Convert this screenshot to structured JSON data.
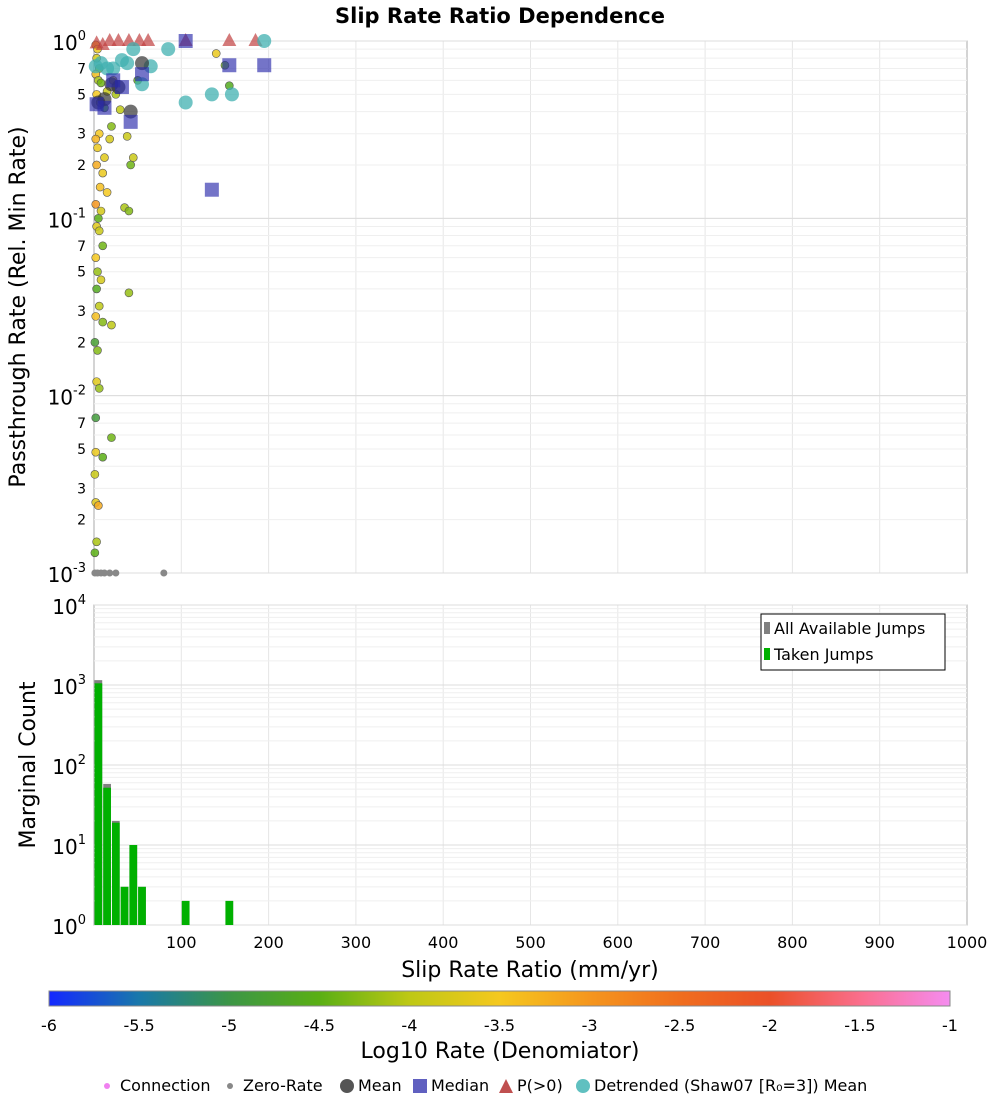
{
  "chart_data": [
    {
      "type": "scatter",
      "title": "Slip Rate Ratio Dependence",
      "xlabel": "Slip Rate Ratio (mm/yr)",
      "ylabel": "Passthrough Rate (Rel. Min Rate)",
      "xlim": [
        0,
        1000
      ],
      "ylim": [
        0.001,
        1
      ],
      "yscale": "log",
      "ytick_labels": [
        "10^-3",
        "2",
        "3",
        "5",
        "7",
        "10^-2",
        "2",
        "3",
        "5",
        "7",
        "10^-1",
        "2",
        "3",
        "5",
        "7",
        "10^0"
      ],
      "grid": true,
      "connections": [
        [
          2,
          0.95,
          -3.2
        ],
        [
          4,
          0.9,
          -3.6
        ],
        [
          3,
          0.8,
          -3.8
        ],
        [
          6,
          0.7,
          -4.3
        ],
        [
          2,
          0.65,
          -3.4
        ],
        [
          5,
          0.6,
          -4.1
        ],
        [
          8,
          0.58,
          -4.4
        ],
        [
          3,
          0.5,
          -3.5
        ],
        [
          7,
          0.45,
          -4.0
        ],
        [
          12,
          0.42,
          -4.6
        ],
        [
          15,
          0.52,
          -3.9
        ],
        [
          25,
          0.5,
          -4.1
        ],
        [
          30,
          0.41,
          -4.0
        ],
        [
          20,
          0.33,
          -4.3
        ],
        [
          38,
          0.29,
          -3.9
        ],
        [
          18,
          0.28,
          -3.8
        ],
        [
          42,
          0.2,
          -4.4
        ],
        [
          45,
          0.22,
          -3.9
        ],
        [
          12,
          0.22,
          -3.7
        ],
        [
          6,
          0.3,
          -3.5
        ],
        [
          2,
          0.28,
          -3.3
        ],
        [
          4,
          0.25,
          -3.6
        ],
        [
          10,
          0.18,
          -3.6
        ],
        [
          3,
          0.2,
          -3.2
        ],
        [
          7,
          0.15,
          -3.4
        ],
        [
          15,
          0.14,
          -3.5
        ],
        [
          2,
          0.12,
          -3.0
        ],
        [
          5,
          0.1,
          -4.5
        ],
        [
          8,
          0.11,
          -3.8
        ],
        [
          35,
          0.115,
          -4.1
        ],
        [
          40,
          0.11,
          -4.3
        ],
        [
          3,
          0.09,
          -3.7
        ],
        [
          6,
          0.085,
          -3.9
        ],
        [
          10,
          0.07,
          -4.4
        ],
        [
          2,
          0.06,
          -3.5
        ],
        [
          4,
          0.05,
          -4.2
        ],
        [
          8,
          0.045,
          -3.8
        ],
        [
          40,
          0.038,
          -4.2
        ],
        [
          3,
          0.04,
          -4.6
        ],
        [
          6,
          0.032,
          -4.0
        ],
        [
          2,
          0.028,
          -3.4
        ],
        [
          10,
          0.026,
          -4.3
        ],
        [
          20,
          0.025,
          -4.0
        ],
        [
          1,
          0.02,
          -4.8
        ],
        [
          4,
          0.018,
          -4.3
        ],
        [
          3,
          0.012,
          -3.7
        ],
        [
          6,
          0.011,
          -4.2
        ],
        [
          2,
          0.0075,
          -4.9
        ],
        [
          20,
          0.0058,
          -4.4
        ],
        [
          10,
          0.0045,
          -4.5
        ],
        [
          2,
          0.0048,
          -3.6
        ],
        [
          1,
          0.0036,
          -3.9
        ],
        [
          2,
          0.0025,
          -3.7
        ],
        [
          5,
          0.0024,
          -3.2
        ],
        [
          3,
          0.0015,
          -4.1
        ],
        [
          1,
          0.0013,
          -4.5
        ],
        [
          150,
          0.73,
          -4.4
        ],
        [
          155,
          0.56,
          -4.6
        ],
        [
          140,
          0.85,
          -3.6
        ],
        [
          50,
          0.6,
          -4.5
        ],
        [
          22,
          0.6,
          -3.7
        ]
      ],
      "zero_rate_x": [
        1,
        4,
        8,
        12,
        18,
        25,
        80
      ],
      "mean": [
        [
          5,
          0.45
        ],
        [
          12,
          0.47
        ],
        [
          20,
          0.57
        ],
        [
          28,
          0.55
        ],
        [
          42,
          0.4
        ],
        [
          55,
          0.75
        ]
      ],
      "median": [
        [
          3,
          0.44
        ],
        [
          12,
          0.42
        ],
        [
          22,
          0.6
        ],
        [
          32,
          0.55
        ],
        [
          42,
          0.35
        ],
        [
          55,
          0.65
        ],
        [
          105,
          1.0
        ],
        [
          135,
          0.145
        ],
        [
          155,
          0.73
        ],
        [
          195,
          0.73
        ]
      ],
      "p_gt_0": [
        [
          3,
          0.97
        ],
        [
          10,
          0.95
        ],
        [
          18,
          1.0
        ],
        [
          28,
          1.0
        ],
        [
          40,
          1.0
        ],
        [
          52,
          1.0
        ],
        [
          62,
          1.0
        ],
        [
          105,
          1.0
        ],
        [
          155,
          1.0
        ],
        [
          185,
          1.0
        ]
      ],
      "detrended_mean": [
        [
          2,
          0.72
        ],
        [
          8,
          0.75
        ],
        [
          15,
          0.7
        ],
        [
          22,
          0.7
        ],
        [
          32,
          0.78
        ],
        [
          38,
          0.75
        ],
        [
          45,
          0.9
        ],
        [
          55,
          0.57
        ],
        [
          65,
          0.72
        ],
        [
          85,
          0.9
        ],
        [
          105,
          0.45
        ],
        [
          135,
          0.5
        ],
        [
          158,
          0.5
        ],
        [
          195,
          1.0
        ]
      ]
    },
    {
      "type": "bar",
      "ylabel": "Marginal Count",
      "yscale": "log",
      "ylim": [
        1,
        10000
      ],
      "ytick_labels": [
        "10^0",
        "10^1",
        "10^2",
        "10^3",
        "10^4"
      ],
      "bin_width": 10,
      "bins": [
        0,
        10,
        20,
        30,
        40,
        50,
        100,
        150
      ],
      "series": [
        {
          "name": "All Available Jumps",
          "color": "#808080",
          "values": [
            1150,
            58,
            20,
            3,
            10,
            3,
            2,
            2
          ]
        },
        {
          "name": "Taken Jumps",
          "color": "#00b000",
          "values": [
            1050,
            52,
            19,
            3,
            10,
            3,
            2,
            2
          ]
        }
      ],
      "legend": "top-right"
    }
  ],
  "xticks": [
    "100",
    "200",
    "300",
    "400",
    "500",
    "600",
    "700",
    "800",
    "900",
    "1000"
  ],
  "colorbar": {
    "label": "Log10 Rate (Denomiator)",
    "range": [
      -6,
      -1
    ],
    "ticks": [
      "-6",
      "-5.5",
      "-5",
      "-4.5",
      "-4",
      "-3.5",
      "-3",
      "-2.5",
      "-2",
      "-1.5",
      "-1"
    ]
  },
  "legend": [
    "Connection",
    "Zero-Rate",
    "Mean",
    "Median",
    "P(>0)",
    "Detrended (Shaw07 [R₀=3]) Mean"
  ]
}
